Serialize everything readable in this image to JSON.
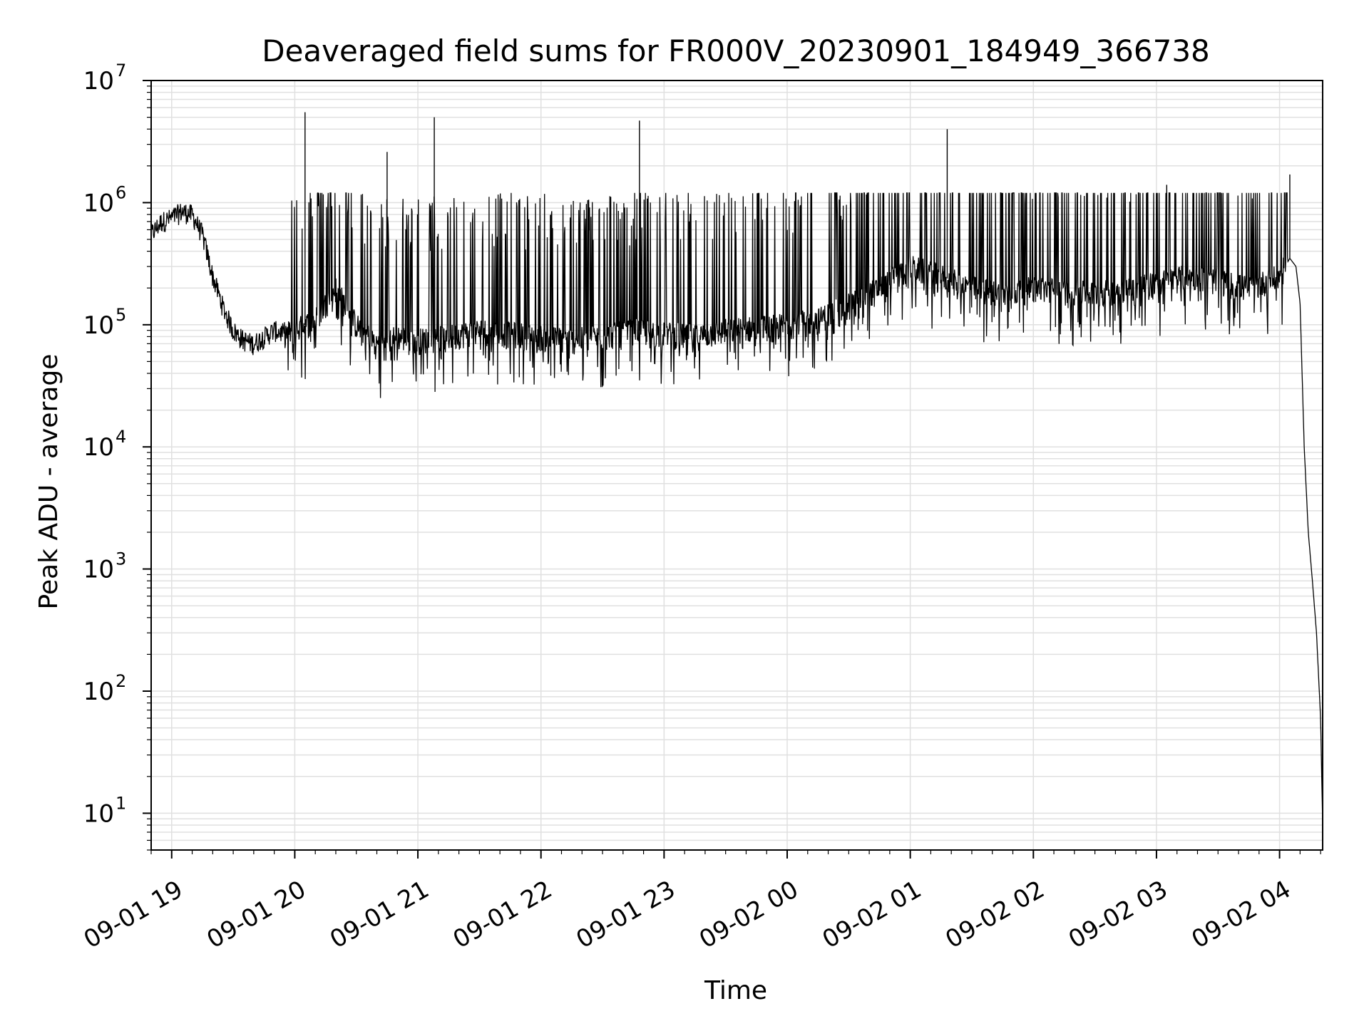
{
  "chart_data": {
    "type": "line",
    "title": "Deaveraged field sums for FR000V_20230901_184949_366738",
    "xlabel": "Time",
    "ylabel": "Peak ADU - average",
    "y_scale": "log",
    "ylim": [
      5,
      10000000
    ],
    "xlim": [
      "09-01 18:50",
      "09-02 04:21"
    ],
    "grid": "on",
    "line_color": "#000000",
    "grid_color": "#e0e0e0",
    "x_ticks": [
      "09-01 19",
      "09-01 20",
      "09-01 21",
      "09-01 22",
      "09-01 23",
      "09-02 00",
      "09-02 01",
      "09-02 02",
      "09-02 03",
      "09-02 04"
    ],
    "y_ticks": [
      {
        "base": "10",
        "exp": "1"
      },
      {
        "base": "10",
        "exp": "2"
      },
      {
        "base": "10",
        "exp": "3"
      },
      {
        "base": "10",
        "exp": "4"
      },
      {
        "base": "10",
        "exp": "5"
      },
      {
        "base": "10",
        "exp": "6"
      },
      {
        "base": "10",
        "exp": "7"
      }
    ],
    "series": [
      {
        "x": [
          "09-01 18:50",
          "09-01 18:55",
          "09-01 19:00",
          "09-01 19:05",
          "09-01 19:10",
          "09-01 19:15",
          "09-01 19:20",
          "09-01 19:25",
          "09-01 19:30",
          "09-01 19:35",
          "09-01 19:40",
          "09-01 19:45",
          "09-01 19:50",
          "09-01 19:55",
          "09-01 20:00",
          "09-01 20:10",
          "09-01 20:20",
          "09-01 20:30",
          "09-01 20:40",
          "09-01 20:50",
          "09-01 21:00",
          "09-01 21:15",
          "09-01 21:30",
          "09-01 21:45",
          "09-01 22:00",
          "09-01 22:15",
          "09-01 22:30",
          "09-01 22:45",
          "09-01 23:00",
          "09-01 23:15",
          "09-01 23:30",
          "09-01 23:45",
          "09-02 00:00",
          "09-02 00:15",
          "09-02 00:30",
          "09-02 00:45",
          "09-02 01:00",
          "09-02 01:15",
          "09-02 01:30",
          "09-02 01:45",
          "09-02 02:00",
          "09-02 02:15",
          "09-02 02:30",
          "09-02 02:45",
          "09-02 03:00",
          "09-02 03:15",
          "09-02 03:30",
          "09-02 03:45",
          "09-02 04:00",
          "09-02 04:05",
          "09-02 04:08",
          "09-02 04:10",
          "09-02 04:12",
          "09-02 04:14",
          "09-02 04:16",
          "09-02 04:18",
          "09-02 04:20",
          "09-02 04:21"
        ],
        "values": [
          550000,
          700000,
          750000,
          850000,
          800000,
          550000,
          250000,
          140000,
          90000,
          75000,
          70000,
          80000,
          90000,
          85000,
          90000,
          110000,
          200000,
          100000,
          70000,
          80000,
          75000,
          80000,
          90000,
          85000,
          80000,
          75000,
          80000,
          90000,
          85000,
          80000,
          90000,
          95000,
          100000,
          110000,
          150000,
          200000,
          300000,
          250000,
          200000,
          180000,
          200000,
          190000,
          180000,
          200000,
          220000,
          250000,
          230000,
          200000,
          250000,
          350000,
          300000,
          150000,
          10000,
          2000,
          800,
          300,
          60,
          8
        ]
      }
    ],
    "spikes": [
      {
        "x": "09-01 20:05",
        "value": 5500000
      },
      {
        "x": "09-01 20:45",
        "value": 2600000
      },
      {
        "x": "09-01 21:08",
        "value": 5000000
      },
      {
        "x": "09-01 22:48",
        "value": 4700000
      },
      {
        "x": "09-02 01:18",
        "value": 4000000
      },
      {
        "x": "09-02 03:05",
        "value": 1400000
      },
      {
        "x": "09-02 04:05",
        "value": 1700000
      }
    ]
  }
}
